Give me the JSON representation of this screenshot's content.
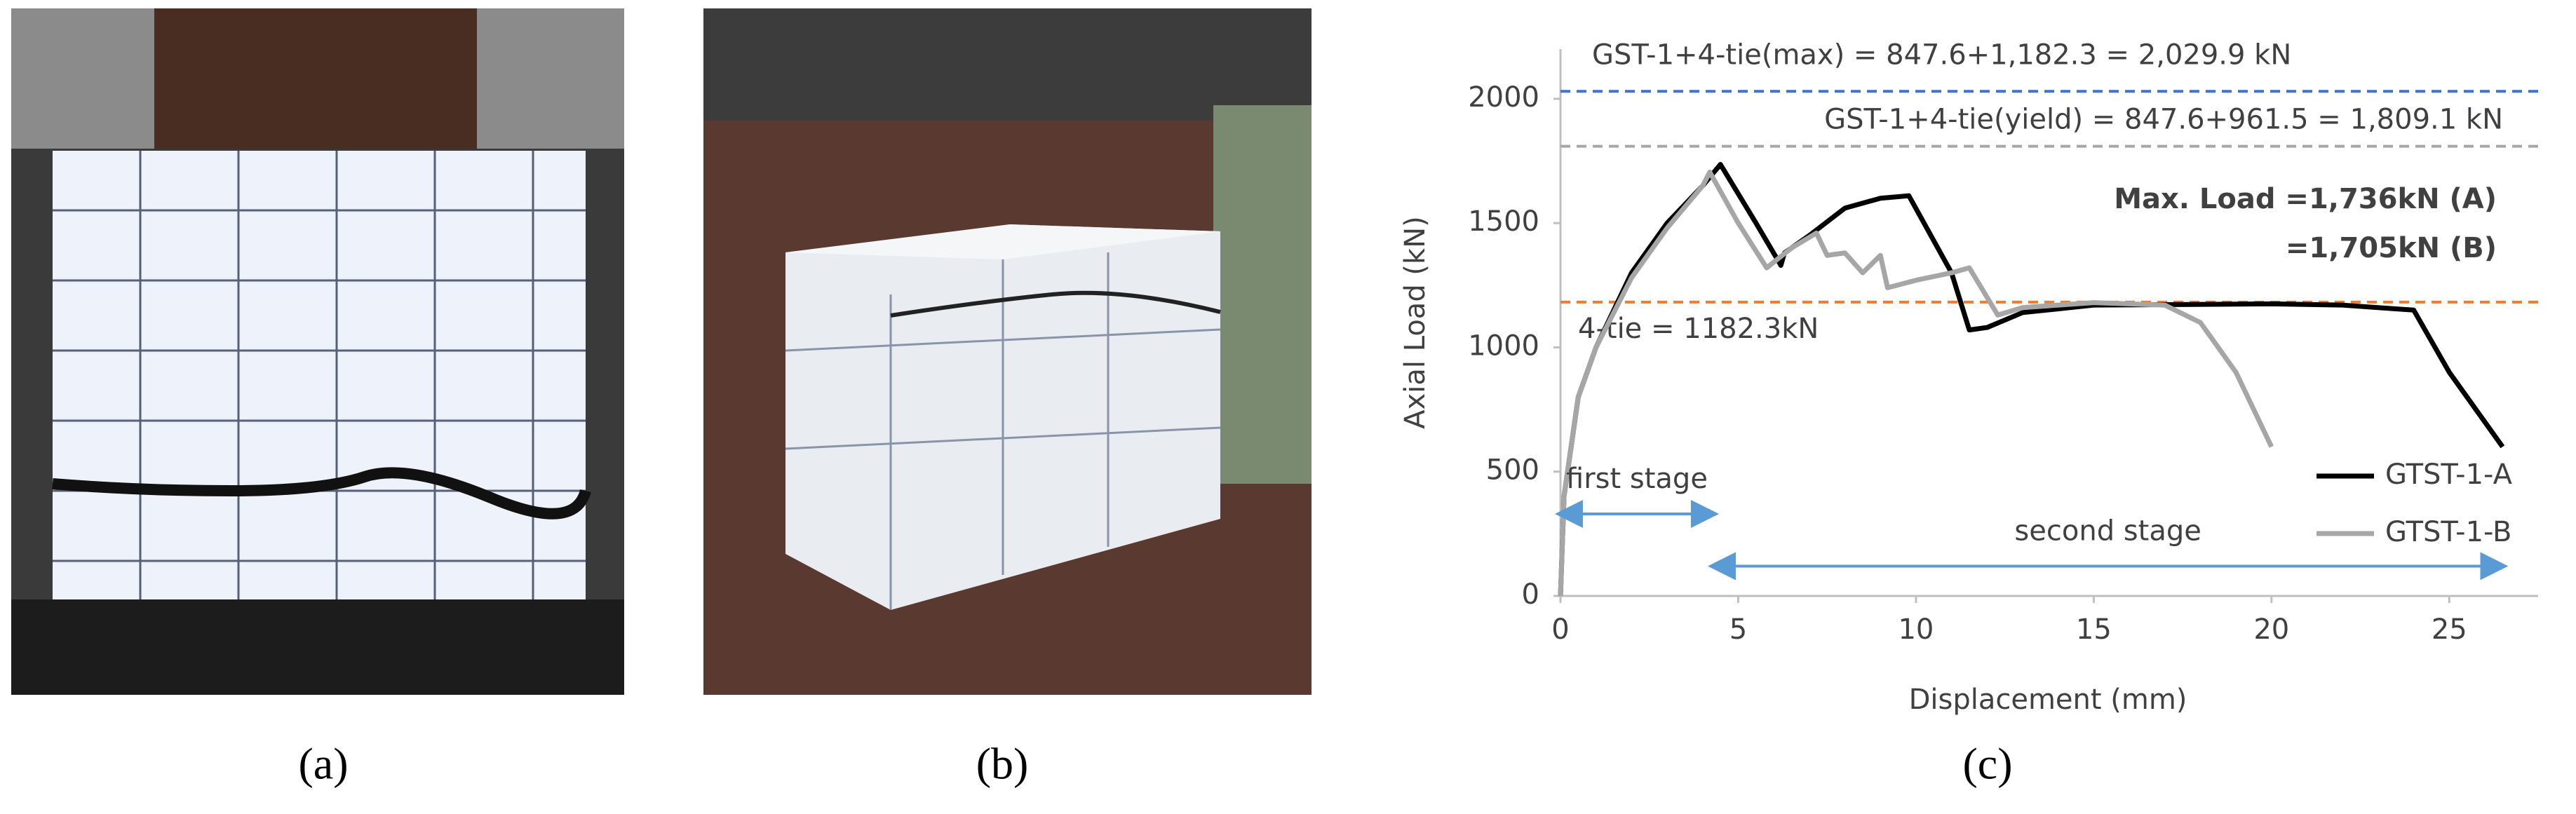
{
  "panels": [
    "(a)",
    "(b)",
    "(c)"
  ],
  "chart_data": {
    "type": "line",
    "x_label": "Displacement (mm)",
    "y_label": "Axial Load (kN)",
    "xlim": [
      0,
      27.5
    ],
    "ylim": [
      0,
      2200
    ],
    "xticks": [
      0,
      5,
      10,
      15,
      20,
      25
    ],
    "yticks": [
      0,
      500,
      1000,
      1500,
      2000
    ],
    "grid": false,
    "legend": "lower right",
    "series": [
      {
        "name": "GTST-1-A",
        "color": "#000000",
        "x": [
          0,
          0.1,
          0.5,
          1,
          2,
          3,
          4,
          4.5,
          5.5,
          6.2,
          6.3,
          7,
          8,
          9,
          9.8,
          11,
          11.5,
          12,
          13,
          15,
          20,
          22,
          24,
          25,
          26,
          26.5
        ],
        "values": [
          0,
          400,
          800,
          1000,
          1300,
          1500,
          1650,
          1736,
          1500,
          1330,
          1380,
          1450,
          1560,
          1600,
          1610,
          1300,
          1070,
          1080,
          1140,
          1170,
          1175,
          1170,
          1150,
          900,
          700,
          600
        ]
      },
      {
        "name": "GTST-1-B",
        "color": "#a6a6a6",
        "x": [
          0,
          0.1,
          0.5,
          1,
          2,
          3,
          4,
          4.2,
          5,
          5.8,
          6.5,
          7.2,
          7.5,
          8,
          8.5,
          9,
          9.2,
          10,
          11,
          11.5,
          12.3,
          13,
          15,
          17,
          18,
          19,
          20
        ],
        "values": [
          0,
          400,
          800,
          1000,
          1280,
          1480,
          1650,
          1705,
          1500,
          1320,
          1400,
          1460,
          1370,
          1380,
          1300,
          1370,
          1240,
          1270,
          1300,
          1320,
          1130,
          1160,
          1180,
          1170,
          1100,
          900,
          600
        ]
      }
    ],
    "reference_lines": [
      {
        "value": 2029.9,
        "color": "#4472c4",
        "label": "GST-1+4-tie(max) = 847.6+1,182.3 = 2,029.9 kN"
      },
      {
        "value": 1809.1,
        "color": "#a6a6a6",
        "label": "GST-1+4-tie(yield) = 847.6+961.5 = 1,809.1 kN"
      },
      {
        "value": 1182.3,
        "color": "#ed7d31",
        "label": "4-tie = 1182.3kN"
      }
    ],
    "annotations": [
      "Max. Load =1,736kN (A)",
      "=1,705kN (B)"
    ],
    "stages": [
      {
        "label": "first stage",
        "x": [
          0,
          4.3
        ],
        "y": 330
      },
      {
        "label": "second stage",
        "x": [
          4.3,
          26.5
        ],
        "y": 120
      }
    ]
  }
}
